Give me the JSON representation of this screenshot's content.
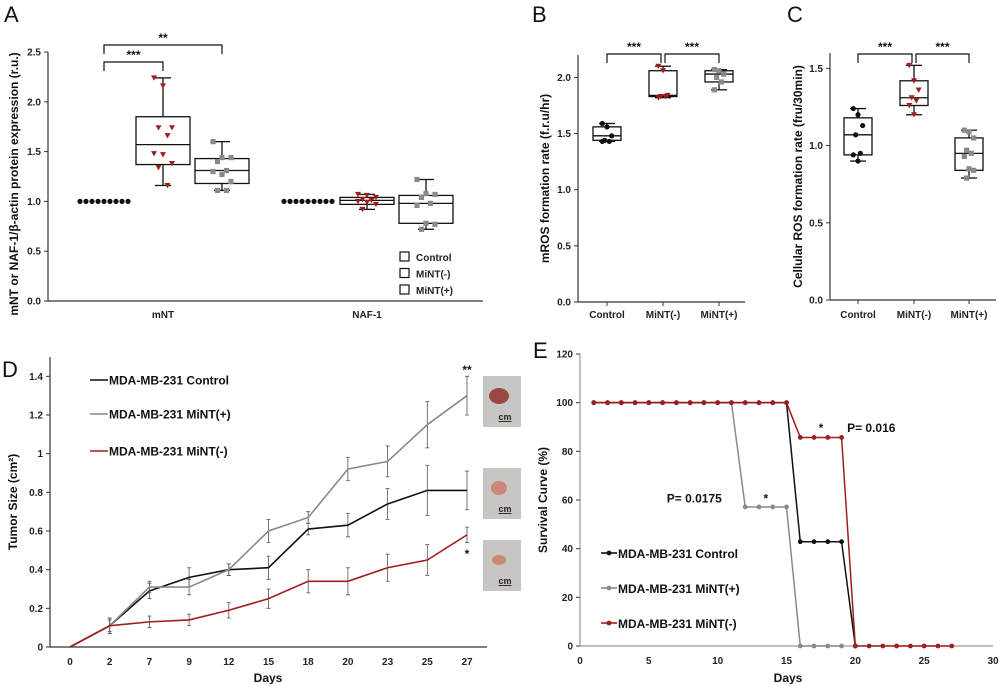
{
  "colors": {
    "control": "#111111",
    "mint_minus": "#a01d1d",
    "mint_plus": "#8a8a8a"
  },
  "chart_data": [
    {
      "panel": "A",
      "type": "box",
      "ylabel": "mNT or NAF-1/β-actin protein expression (r.u.)",
      "ylim": [
        0,
        2.5
      ],
      "yticks": [
        "0.0",
        "0.5",
        "1.0",
        "1.5",
        "2.0",
        "2.5"
      ],
      "categories": [
        "mNT",
        "NAF-1"
      ],
      "legend": [
        "Control",
        "MiNT(-)",
        "MiNT(+)"
      ],
      "groups": [
        {
          "category": "mNT",
          "boxes": [
            {
              "series": "Control",
              "min": 1.0,
              "q1": 1.0,
              "median": 1.0,
              "q3": 1.0,
              "max": 1.0,
              "points": [
                1,
                1,
                1,
                1,
                1,
                1,
                1,
                1,
                1
              ]
            },
            {
              "series": "MiNT(-)",
              "min": 1.16,
              "q1": 1.37,
              "median": 1.57,
              "q3": 1.85,
              "max": 2.24,
              "points": [
                2.24,
                2.16,
                1.74,
                1.74,
                1.66,
                1.48,
                1.47,
                1.38,
                1.34,
                1.16
              ]
            },
            {
              "series": "MiNT(+)",
              "min": 1.11,
              "q1": 1.18,
              "median": 1.31,
              "q3": 1.43,
              "max": 1.6,
              "points": [
                1.6,
                1.44,
                1.44,
                1.4,
                1.31,
                1.3,
                1.27,
                1.2,
                1.11,
                1.11
              ]
            }
          ]
        },
        {
          "category": "NAF-1",
          "boxes": [
            {
              "series": "Control",
              "min": 1.0,
              "q1": 1.0,
              "median": 1.0,
              "q3": 1.0,
              "max": 1.0,
              "points": [
                1,
                1,
                1,
                1,
                1,
                1,
                1,
                1,
                1
              ]
            },
            {
              "series": "MiNT(-)",
              "min": 0.92,
              "q1": 0.97,
              "median": 1.01,
              "q3": 1.04,
              "max": 1.07,
              "points": [
                1.07,
                1.06,
                1.04,
                1.02,
                1.01,
                1.0,
                0.99,
                0.97,
                0.92
              ]
            },
            {
              "series": "MiNT(+)",
              "min": 0.72,
              "q1": 0.78,
              "median": 0.98,
              "q3": 1.06,
              "max": 1.22,
              "points": [
                1.22,
                1.08,
                1.07,
                1.04,
                0.98,
                0.96,
                0.78,
                0.77,
                0.72
              ]
            }
          ]
        }
      ],
      "significance": [
        {
          "group": "mNT",
          "from": 0,
          "to": 1,
          "label": "***"
        },
        {
          "group": "mNT",
          "from": 0,
          "to": 2,
          "label": "**"
        }
      ]
    },
    {
      "panel": "B",
      "type": "box",
      "ylabel": "mROS formation rate (f.r.u/hr)",
      "ylim": [
        0,
        2.2
      ],
      "yticks": [
        "0.0",
        "0.5",
        "1.0",
        "1.5",
        "2.0"
      ],
      "categories": [
        "Control",
        "MiNT(-)",
        "MiNT(+)"
      ],
      "boxes": [
        {
          "series": "Control",
          "min": 1.43,
          "q1": 1.44,
          "median": 1.48,
          "q3": 1.56,
          "max": 1.59,
          "points": [
            1.59,
            1.56,
            1.48,
            1.44,
            1.43,
            1.43
          ]
        },
        {
          "series": "MiNT(-)",
          "min": 1.82,
          "q1": 1.83,
          "median": 1.84,
          "q3": 2.06,
          "max": 2.1,
          "points": [
            2.1,
            2.06,
            1.84,
            1.83,
            1.83,
            1.82
          ]
        },
        {
          "series": "MiNT(+)",
          "min": 1.89,
          "q1": 1.96,
          "median": 2.03,
          "q3": 2.06,
          "max": 2.07,
          "points": [
            2.07,
            2.06,
            2.03,
            2.0,
            1.96,
            1.89
          ]
        }
      ],
      "significance": [
        {
          "from": 0,
          "to": 1,
          "label": "***"
        },
        {
          "from": 1,
          "to": 2,
          "label": "***"
        }
      ]
    },
    {
      "panel": "C",
      "type": "box",
      "ylabel": "Cellular ROS formation rate (fru/30min)",
      "ylim": [
        0,
        1.6
      ],
      "yticks": [
        "0.0",
        "0.5",
        "1.0",
        "1.5"
      ],
      "categories": [
        "Control",
        "MiNT(-)",
        "MiNT(+)"
      ],
      "boxes": [
        {
          "series": "Control",
          "min": 0.9,
          "q1": 0.94,
          "median": 1.07,
          "q3": 1.18,
          "max": 1.24,
          "points": [
            1.24,
            1.2,
            1.13,
            1.07,
            0.95,
            0.94,
            0.9
          ]
        },
        {
          "series": "MiNT(-)",
          "min": 1.2,
          "q1": 1.26,
          "median": 1.31,
          "q3": 1.42,
          "max": 1.52,
          "points": [
            1.52,
            1.42,
            1.36,
            1.31,
            1.29,
            1.26,
            1.2
          ]
        },
        {
          "series": "MiNT(+)",
          "min": 0.79,
          "q1": 0.84,
          "median": 0.95,
          "q3": 1.05,
          "max": 1.1,
          "points": [
            1.1,
            1.09,
            1.05,
            0.97,
            0.95,
            0.93,
            0.85,
            0.84,
            0.79
          ]
        }
      ],
      "significance": [
        {
          "from": 0,
          "to": 1,
          "label": "***"
        },
        {
          "from": 1,
          "to": 2,
          "label": "***"
        }
      ]
    },
    {
      "panel": "D",
      "type": "line",
      "xlabel": "Days",
      "ylabel": "Tumor Size (cm²)",
      "categories": [
        "0",
        "2",
        "7",
        "9",
        "12",
        "15",
        "18",
        "20",
        "23",
        "25",
        "27"
      ],
      "ylim": [
        0,
        1.5
      ],
      "yticks": [
        "0",
        "0.2",
        "0.4",
        "0.6",
        "0.8",
        "1",
        "1.2",
        "1.4"
      ],
      "series": [
        {
          "name": "MDA-MB-231 Control",
          "color_key": "control",
          "values": [
            0,
            0.11,
            0.29,
            0.36,
            0.4,
            0.41,
            0.61,
            0.63,
            0.74,
            0.81,
            0.81
          ],
          "errors": [
            0,
            0.04,
            0.04,
            0.05,
            0.03,
            0.06,
            0.03,
            0.06,
            0.08,
            0.13,
            0.1
          ]
        },
        {
          "name": "MDA-MB-231 MiNT(+)",
          "color_key": "mint_plus",
          "values": [
            0,
            0.11,
            0.31,
            0.31,
            0.4,
            0.6,
            0.67,
            0.92,
            0.96,
            1.15,
            1.3
          ],
          "errors": [
            0,
            0.04,
            0.03,
            0.04,
            0.03,
            0.06,
            0.03,
            0.06,
            0.08,
            0.12,
            0.1
          ]
        },
        {
          "name": "MDA-MB-231 MiNT(-)",
          "color_key": "mint_minus",
          "values": [
            0,
            0.11,
            0.13,
            0.14,
            0.19,
            0.25,
            0.34,
            0.34,
            0.41,
            0.45,
            0.58
          ],
          "errors": [
            0,
            0.03,
            0.03,
            0.03,
            0.04,
            0.05,
            0.06,
            0.07,
            0.07,
            0.08,
            0.04
          ]
        }
      ],
      "annotations": [
        {
          "text": "**",
          "series": 1
        },
        {
          "text": "*",
          "series": 2
        }
      ],
      "photos": [
        {
          "label": "cm"
        },
        {
          "label": "cm"
        },
        {
          "label": "cm"
        }
      ]
    },
    {
      "panel": "E",
      "type": "line",
      "xlabel": "Days",
      "ylabel": "Survival Curve (%)",
      "xlim": [
        0,
        30
      ],
      "xticks": [
        "0",
        "5",
        "10",
        "15",
        "20",
        "25",
        "30"
      ],
      "ylim": [
        0,
        120
      ],
      "yticks": [
        "0",
        "20",
        "40",
        "60",
        "80",
        "100",
        "120"
      ],
      "series": [
        {
          "name": "MDA-MB-231 MiNT(+)",
          "color_key": "mint_plus",
          "x": [
            1,
            2,
            3,
            4,
            5,
            6,
            7,
            8,
            9,
            10,
            11,
            12,
            13,
            14,
            15,
            16,
            17,
            18,
            19
          ],
          "y": [
            100,
            100,
            100,
            100,
            100,
            100,
            100,
            100,
            100,
            100,
            100,
            57.14,
            57.14,
            57.14,
            57.14,
            0,
            0,
            0,
            0
          ]
        },
        {
          "name": "MDA-MB-231 Control",
          "color_key": "control",
          "x": [
            1,
            2,
            3,
            4,
            5,
            6,
            7,
            8,
            9,
            10,
            11,
            12,
            13,
            14,
            15,
            16,
            17,
            18,
            19,
            20
          ],
          "y": [
            100,
            100,
            100,
            100,
            100,
            100,
            100,
            100,
            100,
            100,
            100,
            100,
            100,
            100,
            100,
            42.86,
            42.86,
            42.86,
            42.86,
            0
          ]
        },
        {
          "name": "MDA-MB-231 MiNT(-)",
          "color_key": "mint_minus",
          "x": [
            1,
            2,
            3,
            4,
            5,
            6,
            7,
            8,
            9,
            10,
            11,
            12,
            13,
            14,
            15,
            16,
            17,
            18,
            19,
            20,
            21,
            22,
            23,
            24,
            25,
            26,
            27
          ],
          "y": [
            100,
            100,
            100,
            100,
            100,
            100,
            100,
            100,
            100,
            100,
            100,
            100,
            100,
            100,
            100,
            85.71,
            85.71,
            85.71,
            85.71,
            0,
            0,
            0,
            0,
            0,
            0,
            0,
            0
          ]
        }
      ],
      "legend_order": [
        1,
        0,
        2
      ],
      "annotations": [
        {
          "text": "P= 0.016",
          "x": 19.4,
          "y": 88
        },
        {
          "text": "*",
          "x": 17.5,
          "y": 88
        },
        {
          "text": "P= 0.0175",
          "x": 10.3,
          "y": 59
        },
        {
          "text": "*",
          "x": 13.5,
          "y": 59
        }
      ]
    }
  ]
}
